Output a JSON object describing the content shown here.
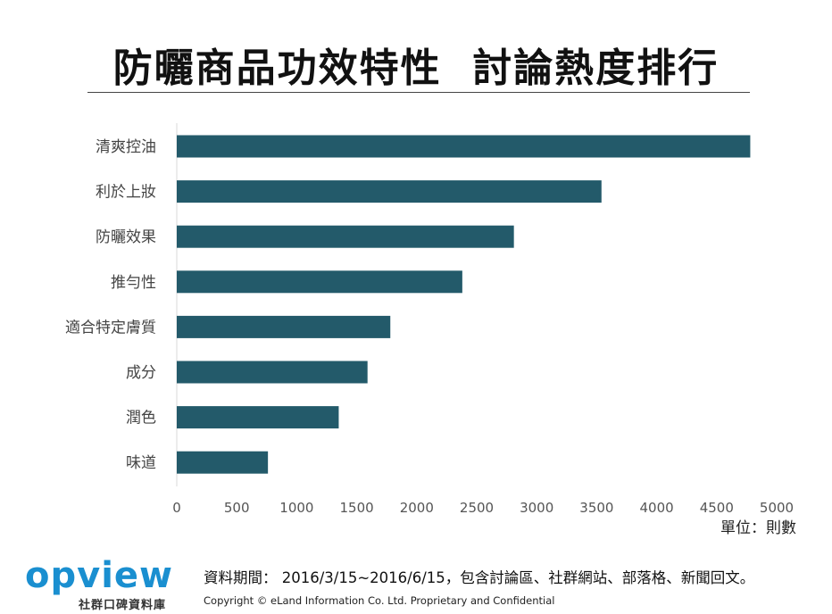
{
  "header": {
    "title": "防曬商品功效特性  討論熱度排行"
  },
  "chart_data": {
    "type": "bar",
    "orientation": "horizontal",
    "categories": [
      "清爽控油",
      "利於上妝",
      "防曬效果",
      "推勻性",
      "適合特定膚質",
      "成分",
      "潤色",
      "味道"
    ],
    "values": [
      4780,
      3540,
      2810,
      2380,
      1780,
      1590,
      1350,
      760
    ],
    "xticks": [
      "0",
      "500",
      "1000",
      "1500",
      "2000",
      "2500",
      "3000",
      "3500",
      "4000",
      "4500",
      "5000"
    ],
    "xlim": [
      0,
      5000
    ],
    "bar_color": "#235a6a",
    "grid": false,
    "unit_label": "單位：則數"
  },
  "footer": {
    "logo_text": "opview",
    "logo_subtitle": "社群口碑資料庫",
    "data_period": "資料期間： 2016/3/15~2016/6/15，包含討論區、社群網站、部落格、新聞回文。",
    "copyright": "Copyright © eLand Information Co. Ltd. Proprietary and Confidential",
    "logo_color": "#1a8fd0"
  }
}
